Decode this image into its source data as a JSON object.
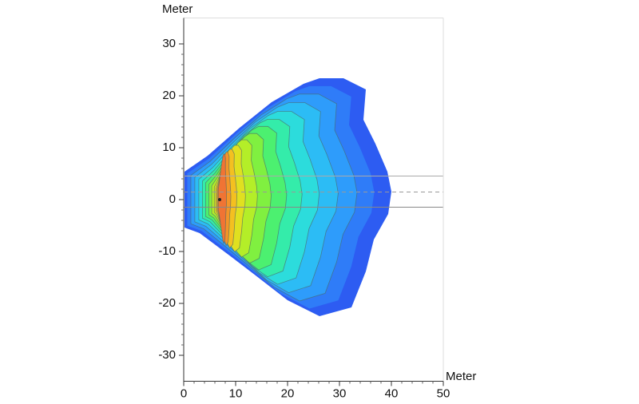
{
  "chart_data": {
    "type": "heatmap",
    "x_label": "Meter",
    "y_label": "Meter",
    "xlim": [
      0,
      50
    ],
    "ylim": [
      -35,
      35
    ],
    "xticks": [
      0,
      10,
      20,
      30,
      40,
      50
    ],
    "yticks": [
      -30,
      -20,
      -10,
      0,
      10,
      20,
      30
    ]
  }
}
